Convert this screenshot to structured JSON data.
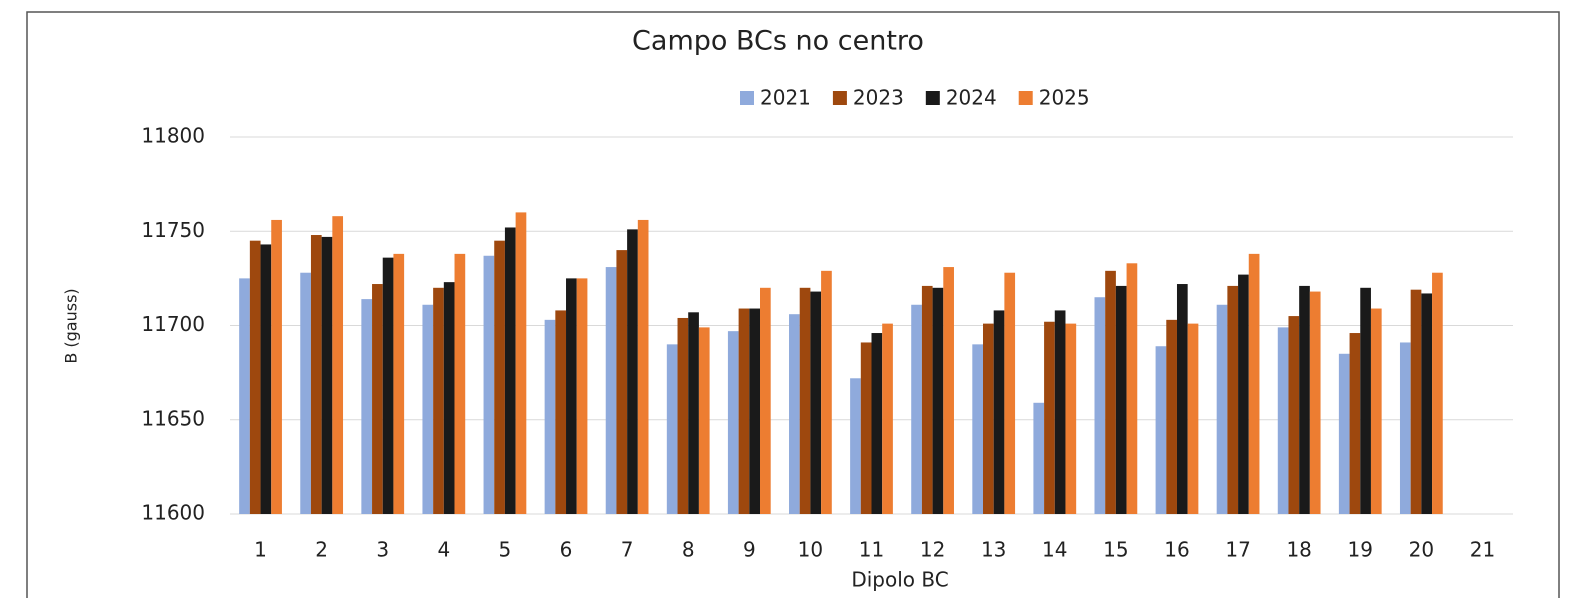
{
  "chart_data": {
    "type": "bar",
    "title": "Campo BCs no centro",
    "x_label": "Dipolo BC",
    "y_label": "B (gauss)",
    "categories": [
      "1",
      "2",
      "3",
      "4",
      "5",
      "6",
      "7",
      "8",
      "9",
      "10",
      "11",
      "12",
      "13",
      "14",
      "15",
      "16",
      "17",
      "18",
      "19",
      "20",
      "21"
    ],
    "series": [
      {
        "name": "2021",
        "color": "#8faadc",
        "values": [
          11725,
          11728,
          11714,
          11711,
          11737,
          11703,
          11731,
          11690,
          11697,
          11706,
          11672,
          11711,
          11690,
          11659,
          11715,
          11689,
          11711,
          11699,
          11685,
          11691,
          null
        ]
      },
      {
        "name": "2023",
        "color": "#9e480e",
        "values": [
          11745,
          11748,
          11722,
          11720,
          11745,
          11708,
          11740,
          11704,
          11709,
          11720,
          11691,
          11721,
          11701,
          11702,
          11729,
          11703,
          11721,
          11705,
          11696,
          11719,
          null
        ]
      },
      {
        "name": "2024",
        "color": "#1a1a1a",
        "values": [
          11743,
          11747,
          11736,
          11723,
          11752,
          11725,
          11751,
          11707,
          11709,
          11718,
          11696,
          11720,
          11708,
          11708,
          11721,
          11722,
          11727,
          11721,
          11720,
          11717,
          null
        ]
      },
      {
        "name": "2025",
        "color": "#ed7d31",
        "values": [
          11756,
          11758,
          11738,
          11738,
          11760,
          11725,
          11756,
          11699,
          11720,
          11729,
          11701,
          11731,
          11728,
          11701,
          11733,
          11701,
          11738,
          11718,
          11709,
          11728,
          null
        ]
      }
    ],
    "ylim": [
      11600,
      11800
    ],
    "yticks": [
      11600,
      11650,
      11700,
      11750,
      11800
    ],
    "grid": true,
    "legend": "top"
  }
}
